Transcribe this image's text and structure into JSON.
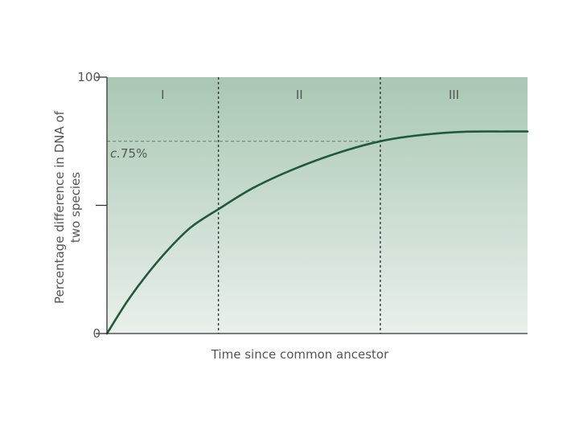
{
  "chart_data": {
    "type": "line",
    "title": "",
    "xlabel": "Time since common ancestor",
    "ylabel_lines": [
      "Percentage difference in DNA of",
      "two species"
    ],
    "ylim": [
      0,
      100
    ],
    "xlim": [
      0,
      100
    ],
    "y_ticks": [
      {
        "value": 0,
        "label": "0"
      },
      {
        "value": 50,
        "label": ""
      },
      {
        "value": 100,
        "label": "100"
      }
    ],
    "phases": [
      {
        "label": "I",
        "start": 0,
        "end": 26.5
      },
      {
        "label": "II",
        "start": 26.5,
        "end": 65
      },
      {
        "label": "III",
        "start": 65,
        "end": 100
      }
    ],
    "reference_line": {
      "value": 75,
      "label": "c.75%"
    },
    "series": [
      {
        "x": [
          0,
          5,
          10,
          15,
          20,
          26.5,
          35,
          45,
          55,
          65,
          75,
          85,
          95,
          100
        ],
        "y": [
          0,
          13,
          24,
          33.5,
          41.5,
          48.5,
          57,
          64.5,
          70.5,
          75,
          77.5,
          78.7,
          78.8,
          78.8
        ]
      }
    ],
    "colors": {
      "curve": "#1f5a3c",
      "background_top": "#a9c7b4",
      "background_bottom": "#e9f0ea",
      "axis": "#333333",
      "guide": "#2a3a30"
    }
  }
}
